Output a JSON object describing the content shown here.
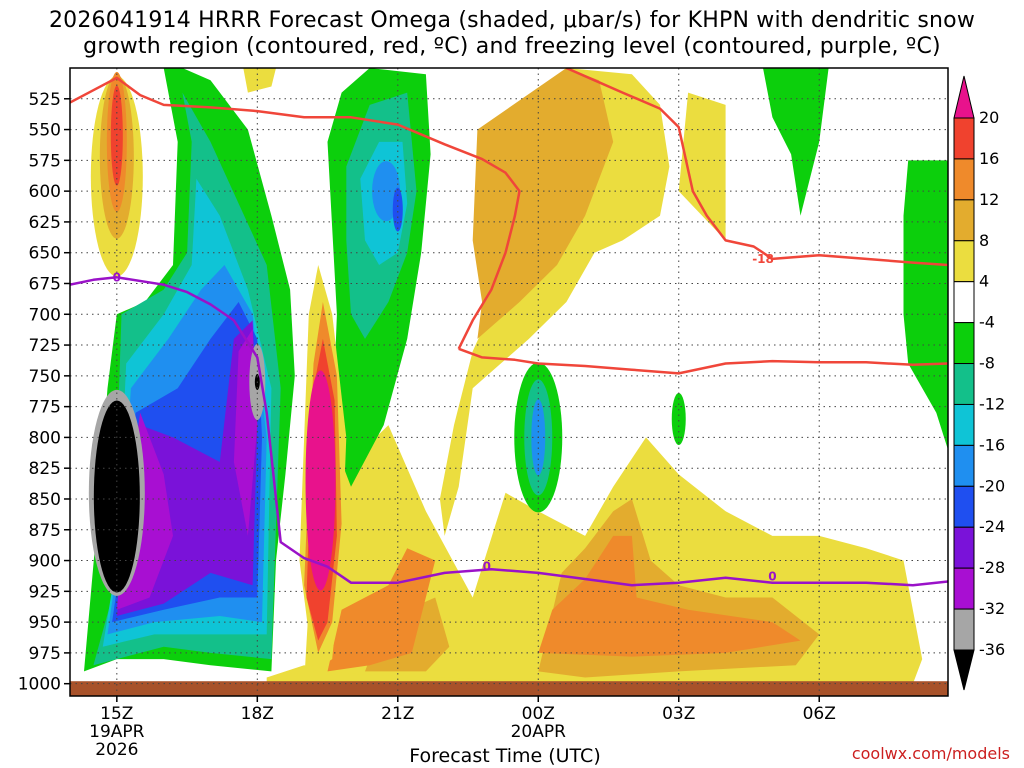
{
  "title": {
    "line1": "2026041914 HRRR Forecast Omega (shaded, μbar/s) for KHPN with dendritic snow",
    "line2": "growth region (contoured, red, ºC) and freezing level (contoured, purple, ºC)"
  },
  "credit": "coolwx.com/models",
  "chart_data": {
    "type": "heatmap",
    "title": "2026041914 HRRR Forecast Omega (shaded, μbar/s) for KHPN with dendritic snow growth region (contoured, red, ºC) and freezing level (contoured, purple, ºC)",
    "xlabel": "Forecast Time (UTC)",
    "ylabel": "",
    "x_hours": [
      14,
      32.75
    ],
    "x_ticks": [
      {
        "hour": 15,
        "label": "15Z",
        "sub": [
          "19APR",
          "2026"
        ]
      },
      {
        "hour": 18,
        "label": "18Z",
        "sub": []
      },
      {
        "hour": 21,
        "label": "21Z",
        "sub": []
      },
      {
        "hour": 24,
        "label": "00Z",
        "sub": [
          "20APR"
        ]
      },
      {
        "hour": 27,
        "label": "03Z",
        "sub": []
      },
      {
        "hour": 30,
        "label": "06Z",
        "sub": []
      }
    ],
    "y_levels": [
      525,
      550,
      575,
      600,
      625,
      650,
      675,
      700,
      725,
      750,
      775,
      800,
      825,
      850,
      875,
      900,
      925,
      950,
      975,
      1000
    ],
    "ylim": [
      1010,
      500
    ],
    "grid": true,
    "colorbar": {
      "ticks": [
        "20",
        "16",
        "12",
        "8",
        "4",
        "-4",
        "-8",
        "-12",
        "-16",
        "-20",
        "-24",
        "-28",
        "-32",
        "-36"
      ],
      "bins": [
        {
          "range": ">20",
          "color": "#e8128c"
        },
        {
          "range": "16 to 20",
          "color": "#f0422e"
        },
        {
          "range": "12 to 16",
          "color": "#ef8a2b"
        },
        {
          "range": "8 to 12",
          "color": "#e3ac2e"
        },
        {
          "range": "4 to 8",
          "color": "#ebdd3f"
        },
        {
          "range": "-4 to 4",
          "color": "#ffffff"
        },
        {
          "range": "-8 to -4",
          "color": "#0ccf0c"
        },
        {
          "range": "-12 to -8",
          "color": "#13c08a"
        },
        {
          "range": "-16 to -12",
          "color": "#0fc4d6"
        },
        {
          "range": "-20 to -16",
          "color": "#1f8ff0"
        },
        {
          "range": "-24 to -20",
          "color": "#1f4ff0"
        },
        {
          "range": "-28 to -24",
          "color": "#7a12d9"
        },
        {
          "range": "-32 to -28",
          "color": "#a80fd2"
        },
        {
          "range": "-36 to -32",
          "color": "#a6a6a6"
        },
        {
          "range": "< -36",
          "color": "#000000"
        }
      ]
    },
    "omega_regions": [
      {
        "color": "#ebdd3f",
        "hour": 15,
        "pmin": 500,
        "pmax": 670,
        "level": "4 to 8"
      },
      {
        "color": "#ef8a2b",
        "hour": 15,
        "pmin": 505,
        "pmax": 640,
        "level": "12 to 16"
      },
      {
        "color": "#f0422e",
        "hour": 15,
        "pmin": 510,
        "pmax": 600,
        "level": "16 to 20"
      },
      {
        "color": "#ebdd3f",
        "hour": 19.1,
        "pmin": 655,
        "pmax": 1000,
        "level": "4 to 8"
      },
      {
        "color": "#e8128c",
        "hour": 19.1,
        "pmin": 725,
        "pmax": 950,
        "level": ">20"
      },
      {
        "color": "#1f8ff0",
        "hour": 20.6,
        "pmin": 560,
        "pmax": 650,
        "level": "-20 to -16"
      },
      {
        "color": "#1f4ff0",
        "hour": 21.0,
        "pmin": 598,
        "pmax": 635,
        "level": "-24 to -20"
      },
      {
        "color": "#1f8ff0",
        "hour": 24,
        "pmin": 770,
        "pmax": 835,
        "level": "-20 to -16"
      },
      {
        "color": "#000000",
        "hour": 15.0,
        "pmin": 760,
        "pmax": 935,
        "level": "< -36"
      },
      {
        "color": "#a6a6a6",
        "hour": 18.0,
        "pmin": 735,
        "pmax": 775,
        "level": "-36 to -32"
      },
      {
        "color": "#0ccf0c",
        "hour": 27,
        "pmin": 760,
        "pmax": 810,
        "level": "-8 to -4"
      },
      {
        "color": "#0ccf0c",
        "hour": 32.3,
        "pmin": 575,
        "pmax": 800,
        "level": "-8 to -4"
      },
      {
        "color": "#e3ac2e",
        "hour": 25.5,
        "pmin": 840,
        "pmax": 985,
        "level": "8 to 12"
      }
    ],
    "contours": [
      {
        "name": "-18",
        "color": "#f0463a",
        "var": "temperature",
        "x": [
          14.0,
          14.5,
          15.0,
          15.5,
          16.0,
          17.0,
          18.0,
          19.0,
          20.0,
          21.0,
          22.0,
          22.8,
          23.3,
          23.6,
          23.5,
          23.3,
          23.0,
          22.6,
          22.3
        ],
        "y": [
          528,
          518,
          508,
          522,
          530,
          532,
          535,
          540,
          540,
          546,
          562,
          574,
          585,
          600,
          620,
          650,
          680,
          705,
          728
        ]
      },
      {
        "name": "-18b",
        "color": "#f0463a",
        "var": "temperature",
        "x": [
          22.3,
          22.8,
          23.5,
          24.0,
          25.0,
          26.0,
          27.0,
          28.0,
          29.0,
          30.0,
          31.0,
          32.0,
          32.75
        ],
        "y": [
          728,
          735,
          737,
          740,
          742,
          745,
          748,
          740,
          738,
          739,
          739,
          741,
          740
        ]
      },
      {
        "name": "-18c",
        "color": "#f0463a",
        "var": "temperature",
        "x": [
          24.6,
          25.2,
          25.8,
          26.6,
          27.0,
          27.3,
          27.6,
          28.0,
          28.6,
          29.0,
          30.0,
          31.0,
          32.0,
          32.75
        ],
        "y": [
          500,
          510,
          520,
          533,
          548,
          600,
          620,
          640,
          645,
          655,
          652,
          655,
          658,
          660
        ]
      },
      {
        "name": "0",
        "color": "#9a12c8",
        "var": "freezing level",
        "x": [
          14.0,
          14.5,
          15.0,
          16.0,
          16.5,
          17.0,
          17.5,
          18.0,
          18.2,
          18.5,
          19.0,
          19.5,
          20.0,
          21.0,
          22.0,
          23.0,
          24.0,
          25.0,
          26.0,
          27.0,
          28.0,
          29.0,
          30.0,
          31.0,
          32.0,
          32.75
        ],
        "y": [
          676,
          672,
          670,
          676,
          682,
          692,
          705,
          735,
          780,
          885,
          898,
          905,
          918,
          918,
          910,
          907,
          910,
          915,
          920,
          918,
          914,
          918,
          918,
          918,
          920,
          917
        ]
      }
    ],
    "contour_labels": [
      {
        "text": "-18",
        "color": "#f0463a",
        "hour": 28.8,
        "p": 655
      },
      {
        "text": "0",
        "color": "#9a12c8",
        "hour": 15,
        "p": 670
      },
      {
        "text": "0",
        "color": "#9a12c8",
        "hour": 22.9,
        "p": 905
      },
      {
        "text": "0",
        "color": "#9a12c8",
        "hour": 29.0,
        "p": 913
      }
    ]
  }
}
